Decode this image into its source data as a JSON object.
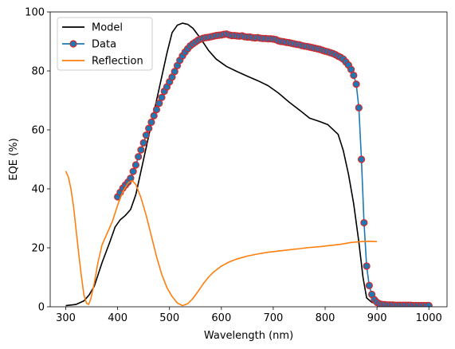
{
  "chart_data": {
    "type": "line",
    "title": "",
    "xlabel": "Wavelength (nm)",
    "ylabel": "EQE (%)",
    "xlim": [
      270,
      1035
    ],
    "ylim": [
      0,
      100
    ],
    "xticks": [
      300,
      400,
      500,
      600,
      700,
      800,
      900,
      1000
    ],
    "yticks": [
      0,
      20,
      40,
      60,
      80,
      100
    ],
    "grid": false,
    "legend_position": "upper-left",
    "series": [
      {
        "name": "Model",
        "color": "#000000",
        "marker": "none",
        "points": [
          [
            300,
            0.4
          ],
          [
            320,
            0.8
          ],
          [
            335,
            2
          ],
          [
            345,
            4
          ],
          [
            355,
            7
          ],
          [
            370,
            15
          ],
          [
            385,
            22
          ],
          [
            395,
            27
          ],
          [
            405,
            29.5
          ],
          [
            415,
            31
          ],
          [
            425,
            33
          ],
          [
            435,
            38
          ],
          [
            445,
            46
          ],
          [
            455,
            54
          ],
          [
            465,
            62
          ],
          [
            475,
            70
          ],
          [
            485,
            78
          ],
          [
            495,
            86
          ],
          [
            505,
            93
          ],
          [
            515,
            95.5
          ],
          [
            525,
            96.2
          ],
          [
            535,
            95.8
          ],
          [
            545,
            94.5
          ],
          [
            560,
            91
          ],
          [
            575,
            87
          ],
          [
            590,
            84
          ],
          [
            610,
            81.5
          ],
          [
            630,
            79.8
          ],
          [
            650,
            78.2
          ],
          [
            670,
            76.7
          ],
          [
            690,
            75
          ],
          [
            710,
            72.5
          ],
          [
            730,
            69.5
          ],
          [
            750,
            66.8
          ],
          [
            770,
            64
          ],
          [
            790,
            62.8
          ],
          [
            805,
            61.8
          ],
          [
            825,
            58.5
          ],
          [
            835,
            53
          ],
          [
            845,
            45
          ],
          [
            855,
            35
          ],
          [
            865,
            22
          ],
          [
            873,
            10
          ],
          [
            880,
            3
          ],
          [
            890,
            1.5
          ],
          [
            900,
            1
          ],
          [
            920,
            0.5
          ]
        ]
      },
      {
        "name": "Data",
        "color": "#1f77b4",
        "marker": "circle",
        "marker_edge": "#d62728",
        "points": [
          [
            400,
            37.3
          ],
          [
            405,
            38.8
          ],
          [
            410,
            40.2
          ],
          [
            415,
            41.3
          ],
          [
            420,
            42.3
          ],
          [
            425,
            43.6
          ],
          [
            430,
            45.9
          ],
          [
            435,
            48.1
          ],
          [
            440,
            50.9
          ],
          [
            445,
            53.2
          ],
          [
            450,
            55.6
          ],
          [
            455,
            58.2
          ],
          [
            460,
            60.5
          ],
          [
            465,
            62.6
          ],
          [
            470,
            64.8
          ],
          [
            475,
            66.9
          ],
          [
            480,
            69.0
          ],
          [
            485,
            71.0
          ],
          [
            490,
            73.1
          ],
          [
            495,
            74.6
          ],
          [
            500,
            76.3
          ],
          [
            505,
            77.9
          ],
          [
            510,
            79.8
          ],
          [
            515,
            81.8
          ],
          [
            520,
            83.6
          ],
          [
            525,
            85.1
          ],
          [
            530,
            86.4
          ],
          [
            535,
            87.5
          ],
          [
            540,
            88.5
          ],
          [
            545,
            89.2
          ],
          [
            550,
            89.8
          ],
          [
            555,
            90.4
          ],
          [
            560,
            90.8
          ],
          [
            565,
            91.1
          ],
          [
            570,
            91.3
          ],
          [
            575,
            91.4
          ],
          [
            580,
            91.6
          ],
          [
            585,
            91.8
          ],
          [
            590,
            92.0
          ],
          [
            595,
            92.1
          ],
          [
            600,
            92.2
          ],
          [
            605,
            92.4
          ],
          [
            610,
            92.5
          ],
          [
            615,
            92.2
          ],
          [
            620,
            92.0
          ],
          [
            625,
            92.0
          ],
          [
            630,
            91.9
          ],
          [
            635,
            91.8
          ],
          [
            640,
            91.9
          ],
          [
            645,
            91.6
          ],
          [
            650,
            91.5
          ],
          [
            655,
            91.5
          ],
          [
            660,
            91.3
          ],
          [
            665,
            91.2
          ],
          [
            670,
            91.3
          ],
          [
            675,
            91.1
          ],
          [
            680,
            91.0
          ],
          [
            685,
            91.0
          ],
          [
            690,
            90.9
          ],
          [
            695,
            90.9
          ],
          [
            700,
            90.8
          ],
          [
            705,
            90.6
          ],
          [
            710,
            90.2
          ],
          [
            715,
            90.0
          ],
          [
            720,
            89.9
          ],
          [
            725,
            89.7
          ],
          [
            730,
            89.6
          ],
          [
            735,
            89.4
          ],
          [
            740,
            89.2
          ],
          [
            745,
            89.0
          ],
          [
            750,
            88.9
          ],
          [
            755,
            88.6
          ],
          [
            760,
            88.4
          ],
          [
            765,
            88.3
          ],
          [
            770,
            88.1
          ],
          [
            775,
            87.9
          ],
          [
            780,
            87.7
          ],
          [
            785,
            87.5
          ],
          [
            790,
            87.3
          ],
          [
            795,
            87.0
          ],
          [
            800,
            86.7
          ],
          [
            805,
            86.5
          ],
          [
            810,
            86.2
          ],
          [
            815,
            85.9
          ],
          [
            820,
            85.5
          ],
          [
            825,
            85.0
          ],
          [
            830,
            84.6
          ],
          [
            835,
            84.0
          ],
          [
            840,
            83.0
          ],
          [
            845,
            82.0
          ],
          [
            850,
            80.5
          ],
          [
            855,
            78.5
          ],
          [
            860,
            75.5
          ],
          [
            865,
            67.5
          ],
          [
            870,
            50.0
          ],
          [
            875,
            28.5
          ],
          [
            880,
            13.8
          ],
          [
            885,
            7.2
          ],
          [
            890,
            4.2
          ],
          [
            895,
            2.4
          ],
          [
            900,
            1.5
          ],
          [
            905,
            1.0
          ],
          [
            910,
            0.8
          ],
          [
            915,
            0.7
          ],
          [
            920,
            0.6
          ],
          [
            925,
            0.6
          ],
          [
            930,
            0.6
          ],
          [
            935,
            0.5
          ],
          [
            940,
            0.5
          ],
          [
            945,
            0.5
          ],
          [
            950,
            0.5
          ],
          [
            955,
            0.5
          ],
          [
            960,
            0.5
          ],
          [
            965,
            0.5
          ],
          [
            970,
            0.4
          ],
          [
            975,
            0.4
          ],
          [
            980,
            0.4
          ],
          [
            985,
            0.4
          ],
          [
            990,
            0.4
          ],
          [
            995,
            0.4
          ],
          [
            1000,
            0.4
          ]
        ]
      },
      {
        "name": "Reflection",
        "color": "#ff7f0e",
        "marker": "none",
        "points": [
          [
            300,
            46
          ],
          [
            305,
            44
          ],
          [
            310,
            40
          ],
          [
            315,
            34
          ],
          [
            320,
            26
          ],
          [
            325,
            18
          ],
          [
            330,
            10.5
          ],
          [
            335,
            4
          ],
          [
            340,
            1.2
          ],
          [
            344,
            0.8
          ],
          [
            348,
            2.5
          ],
          [
            355,
            8
          ],
          [
            362,
            15
          ],
          [
            370,
            21
          ],
          [
            380,
            25
          ],
          [
            390,
            29
          ],
          [
            400,
            34.5
          ],
          [
            410,
            39
          ],
          [
            420,
            42
          ],
          [
            428,
            42.8
          ],
          [
            435,
            41.5
          ],
          [
            445,
            37
          ],
          [
            455,
            31
          ],
          [
            465,
            24
          ],
          [
            475,
            17
          ],
          [
            485,
            11
          ],
          [
            495,
            6.5
          ],
          [
            505,
            3.5
          ],
          [
            515,
            1.3
          ],
          [
            525,
            0.4
          ],
          [
            535,
            1
          ],
          [
            545,
            2.8
          ],
          [
            555,
            5.2
          ],
          [
            565,
            7.8
          ],
          [
            575,
            10
          ],
          [
            585,
            11.8
          ],
          [
            600,
            13.8
          ],
          [
            615,
            15.2
          ],
          [
            630,
            16.2
          ],
          [
            650,
            17.2
          ],
          [
            670,
            17.9
          ],
          [
            690,
            18.5
          ],
          [
            710,
            18.9
          ],
          [
            730,
            19.3
          ],
          [
            750,
            19.7
          ],
          [
            770,
            20.1
          ],
          [
            790,
            20.4
          ],
          [
            810,
            20.8
          ],
          [
            830,
            21.2
          ],
          [
            850,
            21.8
          ],
          [
            870,
            22.1
          ],
          [
            885,
            22.2
          ],
          [
            900,
            22.1
          ]
        ]
      }
    ]
  }
}
